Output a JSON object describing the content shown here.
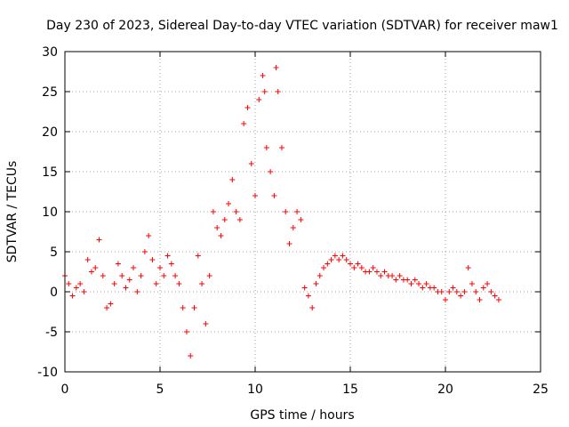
{
  "chart_data": {
    "type": "scatter",
    "title": "Day 230 of 2023, Sidereal Day-to-day VTEC variation (SDTVAR) for receiver maw1",
    "xlabel": "GPS time / hours",
    "ylabel": "SDTVAR / TECUs",
    "xlim": [
      0,
      25
    ],
    "ylim": [
      -10,
      30
    ],
    "x_ticks": [
      "0",
      "5",
      "10",
      "15",
      "20",
      "25"
    ],
    "y_ticks": [
      "-10",
      "-5",
      "0",
      "5",
      "10",
      "15",
      "20",
      "25",
      "30"
    ],
    "grid": true,
    "marker": "+",
    "color": "#ff0000",
    "series": [
      {
        "name": "SDTVAR",
        "x": [
          0.0,
          0.2,
          0.4,
          0.6,
          0.8,
          1.0,
          1.2,
          1.4,
          1.6,
          1.8,
          2.0,
          2.2,
          2.4,
          2.6,
          2.8,
          3.0,
          3.2,
          3.4,
          3.6,
          3.8,
          4.0,
          4.2,
          4.4,
          4.6,
          4.8,
          5.0,
          5.2,
          5.4,
          5.6,
          5.8,
          6.0,
          6.2,
          6.4,
          6.6,
          6.8,
          7.0,
          7.2,
          7.4,
          7.6,
          7.8,
          8.0,
          8.2,
          8.4,
          8.6,
          8.8,
          9.0,
          9.2,
          9.4,
          9.6,
          9.8,
          10.0,
          10.2,
          10.4,
          10.5,
          10.6,
          10.8,
          11.0,
          11.1,
          11.2,
          11.4,
          11.6,
          11.8,
          12.0,
          12.2,
          12.4,
          12.6,
          12.8,
          13.0,
          13.2,
          13.4,
          13.6,
          13.8,
          14.0,
          14.2,
          14.4,
          14.6,
          14.8,
          15.0,
          15.2,
          15.4,
          15.6,
          15.8,
          16.0,
          16.2,
          16.4,
          16.6,
          16.8,
          17.0,
          17.2,
          17.4,
          17.6,
          17.8,
          18.0,
          18.2,
          18.4,
          18.6,
          18.8,
          19.0,
          19.2,
          19.4,
          19.6,
          19.8,
          20.0,
          20.2,
          20.4,
          20.6,
          20.8,
          21.0,
          21.2,
          21.4,
          21.6,
          21.8,
          22.0,
          22.2,
          22.4,
          22.6,
          22.8
        ],
        "y": [
          2.0,
          1.0,
          -0.5,
          0.5,
          1.0,
          0.0,
          4.0,
          2.5,
          3.0,
          6.5,
          2.0,
          -2.0,
          -1.5,
          1.0,
          3.5,
          2.0,
          0.5,
          1.5,
          3.0,
          0.0,
          2.0,
          5.0,
          7.0,
          4.0,
          1.0,
          3.0,
          2.0,
          4.5,
          3.5,
          2.0,
          1.0,
          -2.0,
          -5.0,
          -8.0,
          -2.0,
          4.5,
          1.0,
          -4.0,
          2.0,
          10.0,
          8.0,
          7.0,
          9.0,
          11.0,
          14.0,
          10.0,
          9.0,
          21.0,
          23.0,
          16.0,
          12.0,
          24.0,
          27.0,
          25.0,
          18.0,
          15.0,
          12.0,
          28.0,
          25.0,
          18.0,
          10.0,
          6.0,
          8.0,
          10.0,
          9.0,
          0.5,
          -0.5,
          -2.0,
          1.0,
          2.0,
          3.0,
          3.5,
          4.0,
          4.5,
          4.0,
          4.5,
          4.0,
          3.5,
          3.0,
          3.5,
          3.0,
          2.5,
          2.5,
          3.0,
          2.5,
          2.0,
          2.5,
          2.0,
          2.0,
          1.5,
          2.0,
          1.5,
          1.5,
          1.0,
          1.5,
          1.0,
          0.5,
          1.0,
          0.5,
          0.5,
          0.0,
          0.0,
          -1.0,
          0.0,
          0.5,
          0.0,
          -0.5,
          0.0,
          3.0,
          1.0,
          0.0,
          -1.0,
          0.5,
          1.0,
          0.0,
          -0.5,
          -1.0
        ]
      }
    ]
  }
}
